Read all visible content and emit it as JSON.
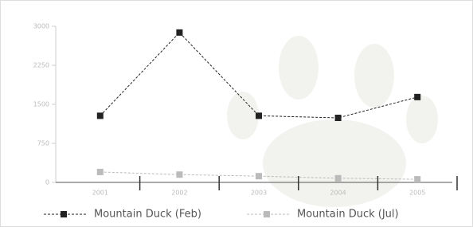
{
  "chart_data": {
    "type": "line",
    "categories": [
      "2001",
      "2002",
      "2003",
      "2004",
      "2005"
    ],
    "series": [
      {
        "name": "Mountain Duck (Feb)",
        "color": "#222222",
        "values": [
          1280,
          2880,
          1280,
          1240,
          1640
        ]
      },
      {
        "name": "Mountain Duck (Jul)",
        "color": "#bbbbbb",
        "values": [
          200,
          150,
          120,
          80,
          60
        ]
      }
    ],
    "ylim": [
      0,
      3000
    ],
    "yticks": [
      0,
      750,
      1500,
      2250,
      3000
    ]
  }
}
